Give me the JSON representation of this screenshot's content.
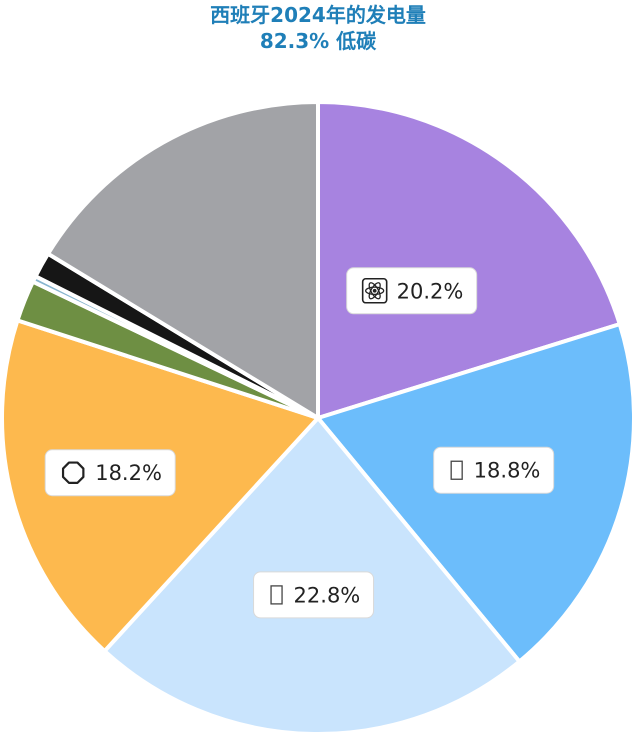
{
  "chart_data": {
    "type": "pie",
    "title": "西班牙2024年的发电量",
    "subtitle": "82.3% 低碳",
    "slices": [
      {
        "value": 20.2,
        "label": "20.2%",
        "color": "#a783e0",
        "icon": "atom-icon"
      },
      {
        "value": 18.8,
        "label": "18.8%",
        "color": "#6cbdfb",
        "icon": "wind-icon"
      },
      {
        "value": 22.8,
        "label": "22.8%",
        "color": "#c9e4fd",
        "icon": "hydro-icon"
      },
      {
        "value": 18.2,
        "label": "18.2%",
        "color": "#fdb94e",
        "icon": "sun-icon"
      },
      {
        "value": 2.1,
        "label": "",
        "color": "#6e8f43",
        "icon": ""
      },
      {
        "value": 0.3,
        "label": "",
        "color": "#87b5cf",
        "icon": ""
      },
      {
        "value": 1.3,
        "label": "",
        "color": "#161616",
        "icon": ""
      },
      {
        "value": 16.3,
        "label": "",
        "color": "#a2a3a7",
        "icon": ""
      }
    ]
  }
}
